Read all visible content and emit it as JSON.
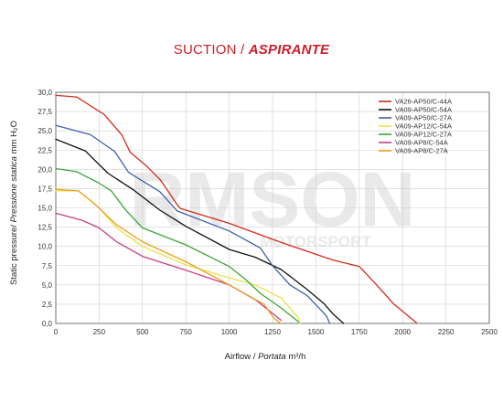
{
  "chart_data": {
    "type": "line",
    "title_parts": [
      "SUCTION / ",
      "ASPIRANTE"
    ],
    "xlabel_main": "Airflow / ",
    "xlabel_italic": "Portata",
    "xlabel_unit": " m³/h",
    "ylabel_main": "Static pressure/ ",
    "ylabel_italic": "Pressione statica",
    "ylabel_unit": "  mm H₂O",
    "xlim": [
      0,
      2500
    ],
    "ylim": [
      0,
      30
    ],
    "xticks": [
      "0",
      "250",
      "500",
      "750",
      "1000",
      "1250",
      "1500",
      "1750",
      "2000",
      "2250",
      "2500"
    ],
    "yticks": [
      "0,0",
      "2,5",
      "5,0",
      "7,5",
      "10,0",
      "12,5",
      "15,0",
      "17,5",
      "20,0",
      "22,5",
      "25,0",
      "27,5",
      "30,0"
    ],
    "grid": true,
    "legend_position": "top-right",
    "watermark": [
      "RMSON",
      "MOTORSPORT"
    ],
    "series": [
      {
        "name": "VA26-AP50/C-44A",
        "color": "#d42a1a",
        "points": [
          [
            0,
            29.6
          ],
          [
            120,
            29.4
          ],
          [
            280,
            27.1
          ],
          [
            380,
            24.5
          ],
          [
            430,
            22.2
          ],
          [
            520,
            20.5
          ],
          [
            600,
            18.7
          ],
          [
            650,
            17.1
          ],
          [
            700,
            15.4
          ],
          [
            720,
            14.9
          ],
          [
            1000,
            13.0
          ],
          [
            1300,
            10.5
          ],
          [
            1600,
            8.2
          ],
          [
            1750,
            7.4
          ],
          [
            1850,
            5.0
          ],
          [
            1950,
            2.5
          ],
          [
            2080,
            0.1
          ]
        ]
      },
      {
        "name": "VA09-AP50/C-54A",
        "color": "#111111",
        "points": [
          [
            0,
            23.9
          ],
          [
            170,
            22.4
          ],
          [
            300,
            19.5
          ],
          [
            450,
            17.3
          ],
          [
            600,
            14.7
          ],
          [
            750,
            12.6
          ],
          [
            1000,
            9.6
          ],
          [
            1150,
            8.6
          ],
          [
            1300,
            7.0
          ],
          [
            1450,
            4.4
          ],
          [
            1550,
            2.5
          ],
          [
            1600,
            1.2
          ],
          [
            1660,
            0.0
          ]
        ]
      },
      {
        "name": "VA09-AP50/C-27A",
        "color": "#3c62a8",
        "points": [
          [
            0,
            25.7
          ],
          [
            200,
            24.5
          ],
          [
            340,
            22.3
          ],
          [
            420,
            19.6
          ],
          [
            600,
            17.1
          ],
          [
            700,
            14.6
          ],
          [
            1000,
            12.0
          ],
          [
            1180,
            9.8
          ],
          [
            1250,
            7.5
          ],
          [
            1350,
            5.0
          ],
          [
            1450,
            3.6
          ],
          [
            1560,
            1.0
          ],
          [
            1580,
            0.0
          ]
        ]
      },
      {
        "name": "VA09-AP12/C-54A",
        "color": "#e8e24a",
        "points": [
          [
            0,
            17.2
          ],
          [
            130,
            17.2
          ],
          [
            250,
            15.0
          ],
          [
            350,
            12.4
          ],
          [
            400,
            11.6
          ],
          [
            500,
            10.0
          ],
          [
            750,
            7.6
          ],
          [
            1000,
            5.9
          ],
          [
            1150,
            5.0
          ],
          [
            1300,
            3.3
          ],
          [
            1400,
            0.7
          ],
          [
            1410,
            0.0
          ]
        ]
      },
      {
        "name": "VA09-AP12/C-27A",
        "color": "#3aa835",
        "points": [
          [
            0,
            20.1
          ],
          [
            120,
            19.7
          ],
          [
            250,
            18.2
          ],
          [
            320,
            17.2
          ],
          [
            400,
            14.8
          ],
          [
            500,
            12.4
          ],
          [
            750,
            10.2
          ],
          [
            1000,
            7.4
          ],
          [
            1100,
            5.6
          ],
          [
            1180,
            3.9
          ],
          [
            1300,
            2.0
          ],
          [
            1400,
            0.2
          ]
        ]
      },
      {
        "name": "VA09-AP8/C-54A",
        "color": "#cc3d87",
        "points": [
          [
            0,
            14.3
          ],
          [
            150,
            13.4
          ],
          [
            250,
            12.4
          ],
          [
            350,
            10.6
          ],
          [
            500,
            8.7
          ],
          [
            750,
            6.9
          ],
          [
            1000,
            5.0
          ],
          [
            1150,
            3.1
          ],
          [
            1300,
            0.4
          ]
        ]
      },
      {
        "name": "VA09-AP8/C-27A",
        "color": "#f0a020",
        "points": [
          [
            0,
            17.4
          ],
          [
            130,
            17.2
          ],
          [
            220,
            15.6
          ],
          [
            350,
            12.8
          ],
          [
            500,
            10.6
          ],
          [
            750,
            8.0
          ],
          [
            1000,
            5.0
          ],
          [
            1200,
            2.5
          ],
          [
            1260,
            0.6
          ],
          [
            1300,
            0.0
          ]
        ]
      }
    ]
  }
}
